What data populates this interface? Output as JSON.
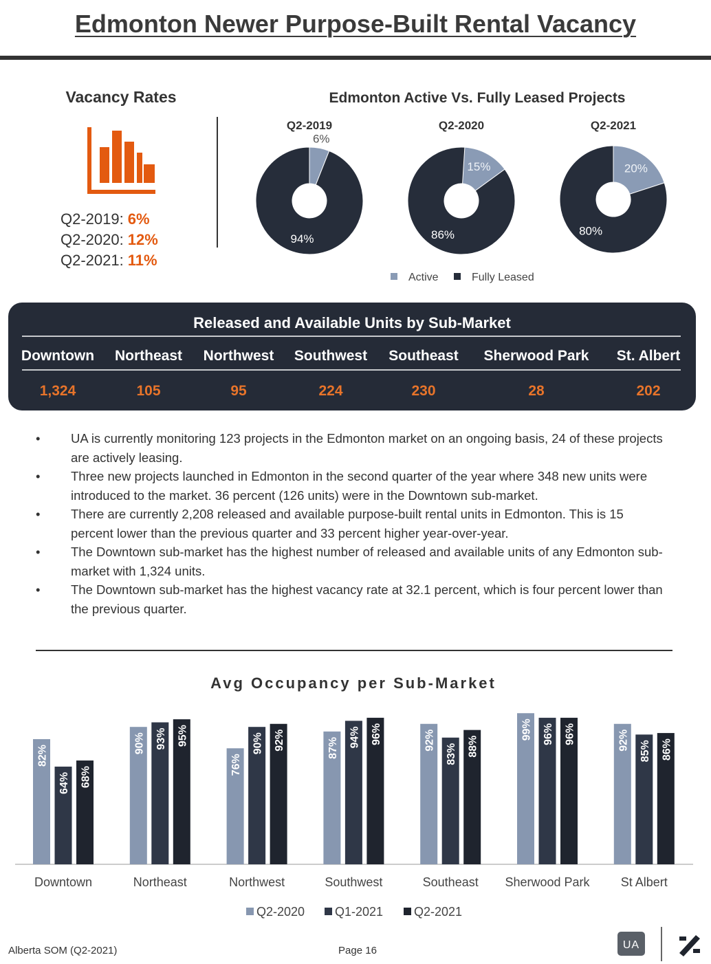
{
  "header": {
    "title": "Edmonton Newer Purpose-Built Rental Vacancy"
  },
  "vacancy": {
    "title": "Vacancy Rates",
    "items": [
      {
        "label": "Q2-2019:",
        "value": "6%"
      },
      {
        "label": "Q2-2020:",
        "value": "12%"
      },
      {
        "label": "Q2-2021:",
        "value": "11%"
      }
    ]
  },
  "units_table": {
    "title": "Released and Available Units by Sub-Market",
    "headers": [
      "Downtown",
      "Northeast",
      "Northwest",
      "Southwest",
      "Southeast",
      "Sherwood Park",
      "St. Albert"
    ],
    "values": [
      "1,324",
      "105",
      "95",
      "224",
      "230",
      "28",
      "202"
    ]
  },
  "bullets": [
    "UA is currently monitoring 123 projects in the Edmonton market on an ongoing basis, 24 of these projects are actively leasing.",
    "Three new projects launched in Edmonton in the second quarter of the year where 348 new units were introduced to the market. 36 percent (126 units) were in the Downtown sub-market.",
    "There are currently 2,208 released and available purpose-built rental units in Edmonton.  This is 15 percent lower than the previous quarter and 33 percent higher year-over-year.",
    "The Downtown sub-market has the highest number of released and available units of any Edmonton sub-market with 1,324 units.",
    "The Downtown sub-market has the highest vacancy rate at 32.1 percent, which is four percent lower than the previous quarter."
  ],
  "chart_data": [
    {
      "type": "pie",
      "title": "Edmonton Active Vs. Fully Leased Projects",
      "categories": [
        "Active",
        "Fully Leased"
      ],
      "colors": [
        "#8a9bb5",
        "#262d3a"
      ],
      "pies": [
        {
          "name": "Q2-2019",
          "values": [
            6,
            94
          ],
          "value_labels": [
            "6%",
            "94%"
          ]
        },
        {
          "name": "Q2-2020",
          "values": [
            15,
            86
          ],
          "value_labels": [
            "15%",
            "86%"
          ]
        },
        {
          "name": "Q2-2021",
          "values": [
            20,
            80
          ],
          "value_labels": [
            "20%",
            "80%"
          ]
        }
      ]
    },
    {
      "type": "bar",
      "title": "Avg Occupancy per Sub-Market",
      "categories": [
        "Downtown",
        "Northeast",
        "Northwest",
        "Southwest",
        "Southeast",
        "Sherwood Park",
        "St Albert"
      ],
      "ylim": [
        0,
        100
      ],
      "series": [
        {
          "name": "Q2-2020",
          "color": "#8797b0",
          "values": [
            82,
            90,
            76,
            87,
            92,
            99,
            92
          ],
          "value_labels": [
            "82%",
            "90%",
            "76%",
            "87%",
            "92%",
            "99%",
            "92%"
          ]
        },
        {
          "name": "Q1-2021",
          "color": "#2f3747",
          "values": [
            64,
            93,
            90,
            94,
            83,
            96,
            85
          ],
          "value_labels": [
            "64%",
            "93%",
            "90%",
            "94%",
            "83%",
            "96%",
            "85%"
          ]
        },
        {
          "name": "Q2-2021",
          "color": "#1f242e",
          "values": [
            68,
            95,
            92,
            96,
            88,
            96,
            86
          ],
          "value_labels": [
            "68%",
            "95%",
            "92%",
            "96%",
            "88%",
            "96%",
            "86%"
          ]
        }
      ]
    }
  ],
  "footer": {
    "left": "Alberta SOM (Q2-2021)",
    "center": "Page 16",
    "logo": "UA"
  }
}
